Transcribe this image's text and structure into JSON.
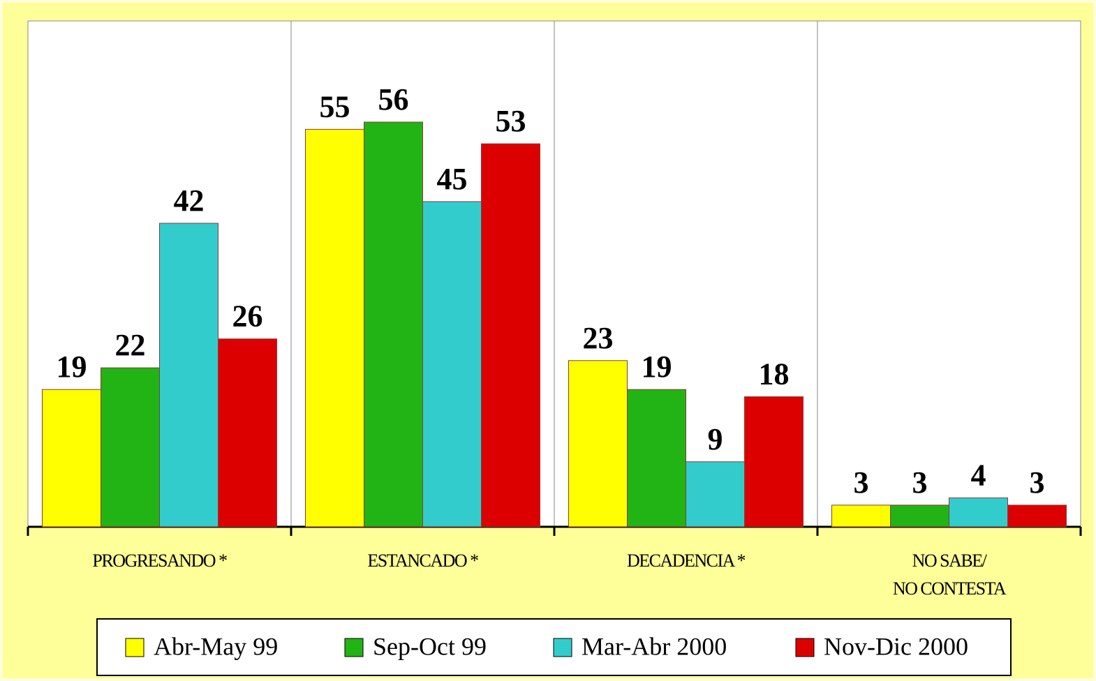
{
  "chart_data": {
    "type": "bar",
    "categories": [
      "PROGRESANDO *",
      "ESTANCADO *",
      "DECADENCIA *",
      "NO SABE/\nNO CONTESTA"
    ],
    "series": [
      {
        "name": "Abr-May 99",
        "color": "#ffff00",
        "values": [
          19,
          55,
          23,
          3
        ]
      },
      {
        "name": "Sep-Oct 99",
        "color": "#22b314",
        "values": [
          22,
          56,
          19,
          3
        ]
      },
      {
        "name": "Mar-Abr 2000",
        "color": "#33cccc",
        "values": [
          42,
          45,
          9,
          4
        ]
      },
      {
        "name": "Nov-Dic 2000",
        "color": "#dd0000",
        "values": [
          26,
          53,
          18,
          3
        ]
      }
    ],
    "ylim": [
      0,
      70
    ],
    "legend": "bottom"
  }
}
